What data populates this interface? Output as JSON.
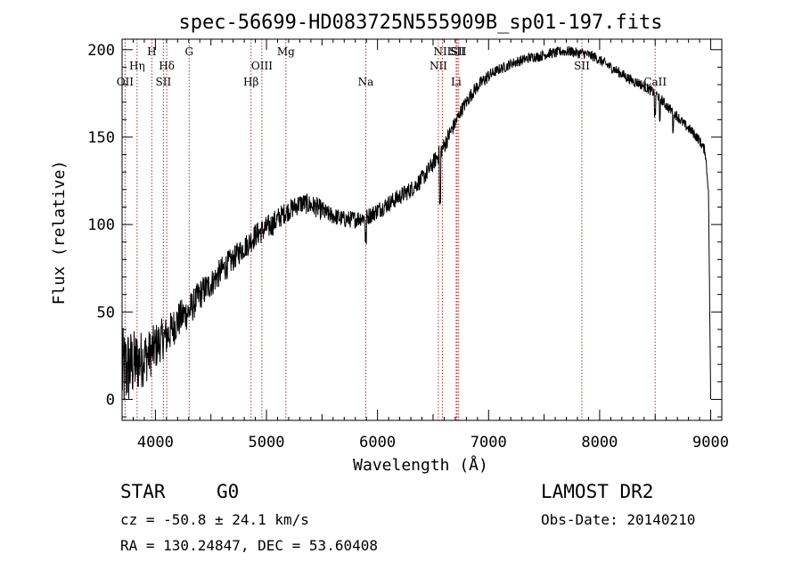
{
  "chart_data": {
    "type": "line",
    "title": "spec-56699-HD083725N555909B_sp01-197.fits",
    "xlabel": "Wavelength (Å)",
    "ylabel": "Flux (relative)",
    "xlim": [
      3700,
      9100
    ],
    "ylim": [
      -12,
      206
    ],
    "xticks": [
      4000,
      5000,
      6000,
      7000,
      8000,
      9000
    ],
    "yticks": [
      0,
      50,
      100,
      150,
      200
    ],
    "grid": false,
    "series": [
      {
        "color": "#000000",
        "x": [
          3700,
          3750,
          3800,
          3850,
          3900,
          3950,
          4000,
          4050,
          4100,
          4150,
          4200,
          4250,
          4300,
          4350,
          4400,
          4450,
          4500,
          4550,
          4600,
          4650,
          4700,
          4750,
          4800,
          4850,
          4900,
          4950,
          5000,
          5050,
          5100,
          5150,
          5200,
          5250,
          5300,
          5350,
          5400,
          5450,
          5500,
          5550,
          5600,
          5650,
          5700,
          5750,
          5800,
          5850,
          5900,
          5950,
          6000,
          6050,
          6100,
          6150,
          6200,
          6250,
          6300,
          6350,
          6400,
          6450,
          6500,
          6550,
          6600,
          6650,
          6700,
          6750,
          6800,
          6850,
          6900,
          6950,
          7000,
          7050,
          7100,
          7150,
          7200,
          7250,
          7300,
          7350,
          7400,
          7450,
          7500,
          7550,
          7600,
          7650,
          7700,
          7750,
          7800,
          7850,
          7900,
          7950,
          8000,
          8050,
          8100,
          8150,
          8200,
          8250,
          8300,
          8350,
          8400,
          8450,
          8500,
          8550,
          8600,
          8650,
          8700,
          8750,
          8800,
          8850,
          8900,
          8950,
          8980,
          9000
        ],
        "y": [
          15,
          18,
          20,
          22,
          24,
          26,
          30,
          34,
          36,
          40,
          45,
          48,
          50,
          55,
          60,
          63,
          66,
          70,
          74,
          77,
          80,
          84,
          87,
          90,
          94,
          96,
          98,
          100,
          103,
          106,
          108,
          110,
          112,
          112,
          111,
          110,
          108,
          106,
          105,
          104,
          103,
          103,
          103,
          104,
          104,
          106,
          108,
          110,
          112,
          114,
          116,
          118,
          120,
          123,
          126,
          130,
          135,
          140,
          145,
          152,
          158,
          165,
          170,
          175,
          179,
          182,
          185,
          187,
          189,
          190,
          192,
          193,
          194,
          195,
          196,
          196,
          197,
          198,
          198,
          199,
          199,
          199,
          198,
          198,
          197,
          196,
          194,
          192,
          190,
          188,
          186,
          184,
          182,
          181,
          179,
          177,
          175,
          172,
          168,
          165,
          162,
          158,
          155,
          152,
          148,
          142,
          120,
          0
        ],
        "noise": [
          26,
          24,
          20,
          18,
          16,
          14,
          14,
          12,
          12,
          11,
          11,
          10,
          10,
          9,
          9,
          9,
          8,
          8,
          8,
          8,
          7,
          7,
          7,
          7,
          7,
          7,
          7,
          7,
          7,
          6,
          6,
          6,
          6,
          6,
          6,
          6,
          6,
          5,
          5,
          5,
          5,
          5,
          5,
          5,
          5,
          5,
          5,
          5,
          5,
          5,
          5,
          5,
          5,
          5,
          5,
          5,
          5,
          5,
          5,
          5,
          4,
          4,
          4,
          4,
          4,
          4,
          4,
          3,
          3,
          3,
          3,
          3,
          3,
          3,
          3,
          3,
          3,
          3,
          3,
          3,
          3,
          3,
          3,
          3,
          3,
          3,
          3,
          3,
          3,
          3,
          3,
          3,
          3,
          3,
          3,
          3,
          3,
          3,
          3,
          3,
          3,
          3,
          3,
          3,
          3,
          3,
          3,
          0
        ]
      }
    ],
    "lines": [
      {
        "label": "OII",
        "wavelength": 3727,
        "row": 2
      },
      {
        "label": "Hη",
        "wavelength": 3835,
        "row": 1
      },
      {
        "label": "H",
        "wavelength": 3968,
        "row": 0
      },
      {
        "label": "SII",
        "wavelength": 4072,
        "row": 2
      },
      {
        "label": "Hδ",
        "wavelength": 4102,
        "row": 1
      },
      {
        "label": "G",
        "wavelength": 4304,
        "row": 0
      },
      {
        "label": "Hβ",
        "wavelength": 4861,
        "row": 2
      },
      {
        "label": "OIII",
        "wavelength": 4959,
        "row": 1
      },
      {
        "label": "Mg",
        "wavelength": 5175,
        "row": 0
      },
      {
        "label": "Na",
        "wavelength": 5894,
        "row": 2
      },
      {
        "label": "NII",
        "wavelength": 6548,
        "row": 1
      },
      {
        "label": "NII",
        "wavelength": 6584,
        "row": 0
      },
      {
        "label": "Li",
        "wavelength": 6708,
        "row": 2
      },
      {
        "label": "SII",
        "wavelength": 6717,
        "row": 0
      },
      {
        "label": "SII",
        "wavelength": 6731,
        "row": 0
      },
      {
        "label": "SII",
        "wavelength": 7840,
        "row": 1
      },
      {
        "label": "CaII",
        "wavelength": 8500,
        "row": 2
      }
    ],
    "line_color": "#b03030"
  },
  "info": {
    "class": "STAR",
    "subclass": "G0",
    "survey": "LAMOST DR2",
    "cz": "cz = -50.8 ± 24.1 km/s",
    "obs_date": "Obs-Date: 20140210",
    "coords": "RA = 130.24847, DEC =  53.60408"
  }
}
